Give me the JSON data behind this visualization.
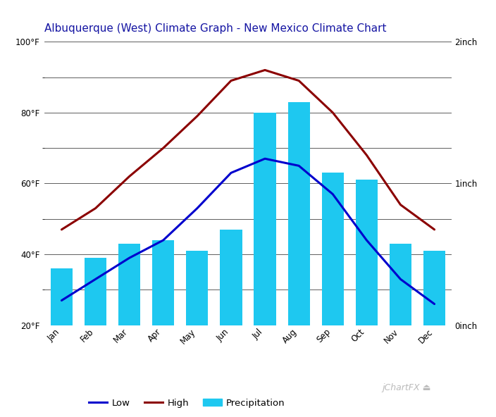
{
  "title": "Albuquerque (West) Climate Graph - New Mexico Climate Chart",
  "months": [
    "Jan",
    "Feb",
    "Mar",
    "Apr",
    "May",
    "Jun",
    "Jul",
    "Aug",
    "Sep",
    "Oct",
    "Nov",
    "Dec"
  ],
  "temp_low": [
    27,
    33,
    39,
    44,
    53,
    63,
    67,
    65,
    57,
    44,
    33,
    26
  ],
  "temp_high": [
    47,
    53,
    62,
    70,
    79,
    89,
    92,
    89,
    80,
    68,
    54,
    47
  ],
  "bar_top_temp": [
    36,
    39,
    43,
    44,
    41,
    47,
    80,
    83,
    63,
    61,
    43,
    41
  ],
  "bar_color": "#1EC8F0",
  "line_low_color": "#0000CD",
  "line_high_color": "#8B0000",
  "background_color": "#FFFFFF",
  "grid_color": "#444444",
  "temp_min": 20,
  "temp_max": 100,
  "precip_min": 0,
  "precip_max": 2,
  "title_color": "#1515A3",
  "title_fontsize": 11,
  "tick_fontsize": 8.5,
  "legend_fontsize": 9.5
}
